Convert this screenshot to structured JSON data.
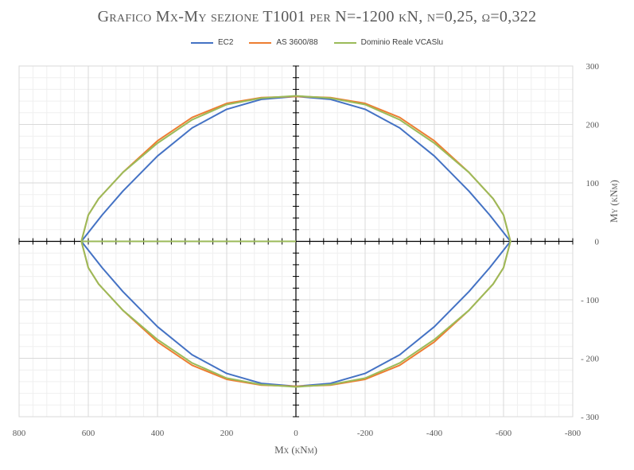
{
  "chart_data": {
    "type": "line",
    "title": "Grafico Mx-My sezione T1001 per N=-1200 kN, ν=0,25, ω=0,322",
    "xlabel": "Mx (kNm)",
    "ylabel": "My (kNm)",
    "xlim": [
      800,
      -800
    ],
    "ylim": [
      -300,
      300
    ],
    "x_ticks": [
      "800",
      "600",
      "400",
      "200",
      "0",
      "-200",
      "-400",
      "-600",
      "-800"
    ],
    "y_ticks": [
      "300",
      "200",
      "100",
      "0",
      "- 100",
      "- 200",
      "- 300"
    ],
    "grid": true,
    "legend_position": "top",
    "series": [
      {
        "name": "EC2",
        "color": "#4472C4",
        "points": [
          [
            620,
            0
          ],
          [
            560,
            45
          ],
          [
            500,
            86
          ],
          [
            400,
            146
          ],
          [
            300,
            194
          ],
          [
            200,
            226
          ],
          [
            100,
            243
          ],
          [
            0,
            248
          ],
          [
            -100,
            243
          ],
          [
            -200,
            226
          ],
          [
            -300,
            194
          ],
          [
            -400,
            146
          ],
          [
            -500,
            86
          ],
          [
            -560,
            45
          ],
          [
            -620,
            0
          ],
          [
            -560,
            -45
          ],
          [
            -500,
            -86
          ],
          [
            -400,
            -146
          ],
          [
            -300,
            -194
          ],
          [
            -200,
            -226
          ],
          [
            -100,
            -243
          ],
          [
            0,
            -248
          ],
          [
            100,
            -243
          ],
          [
            200,
            -226
          ],
          [
            300,
            -194
          ],
          [
            400,
            -146
          ],
          [
            500,
            -86
          ],
          [
            560,
            -45
          ],
          [
            620,
            0
          ]
        ]
      },
      {
        "name": "AS 3600/88",
        "color": "#ED7D31",
        "points": [
          [
            620,
            0
          ],
          [
            600,
            45
          ],
          [
            570,
            73
          ],
          [
            500,
            118
          ],
          [
            400,
            172
          ],
          [
            300,
            212
          ],
          [
            200,
            236
          ],
          [
            100,
            246
          ],
          [
            0,
            248
          ],
          [
            -100,
            246
          ],
          [
            -200,
            236
          ],
          [
            -300,
            212
          ],
          [
            -400,
            172
          ],
          [
            -500,
            118
          ],
          [
            -570,
            73
          ],
          [
            -600,
            45
          ],
          [
            -620,
            0
          ],
          [
            -600,
            -45
          ],
          [
            -570,
            -73
          ],
          [
            -500,
            -118
          ],
          [
            -400,
            -172
          ],
          [
            -300,
            -212
          ],
          [
            -200,
            -236
          ],
          [
            -100,
            -246
          ],
          [
            0,
            -248
          ],
          [
            100,
            -246
          ],
          [
            200,
            -236
          ],
          [
            300,
            -212
          ],
          [
            400,
            -172
          ],
          [
            500,
            -118
          ],
          [
            570,
            -73
          ],
          [
            600,
            -45
          ],
          [
            620,
            0
          ]
        ]
      },
      {
        "name": "Dominio Reale VCASlu",
        "color": "#9BBB59",
        "points": [
          [
            620,
            0
          ],
          [
            600,
            45
          ],
          [
            570,
            73
          ],
          [
            500,
            118
          ],
          [
            400,
            168
          ],
          [
            300,
            208
          ],
          [
            200,
            234
          ],
          [
            100,
            245
          ],
          [
            0,
            249
          ],
          [
            -100,
            245
          ],
          [
            -200,
            234
          ],
          [
            -300,
            208
          ],
          [
            -400,
            168
          ],
          [
            -500,
            118
          ],
          [
            -570,
            73
          ],
          [
            -600,
            45
          ],
          [
            -620,
            0
          ],
          [
            -600,
            -45
          ],
          [
            -570,
            -73
          ],
          [
            -500,
            -118
          ],
          [
            -400,
            -168
          ],
          [
            -300,
            -208
          ],
          [
            -200,
            -234
          ],
          [
            -100,
            -245
          ],
          [
            0,
            -249
          ],
          [
            100,
            -245
          ],
          [
            200,
            -234
          ],
          [
            300,
            -208
          ],
          [
            400,
            -168
          ],
          [
            500,
            -118
          ],
          [
            570,
            -73
          ],
          [
            600,
            -45
          ],
          [
            620,
            0
          ],
          [
            0,
            0
          ]
        ]
      }
    ]
  }
}
